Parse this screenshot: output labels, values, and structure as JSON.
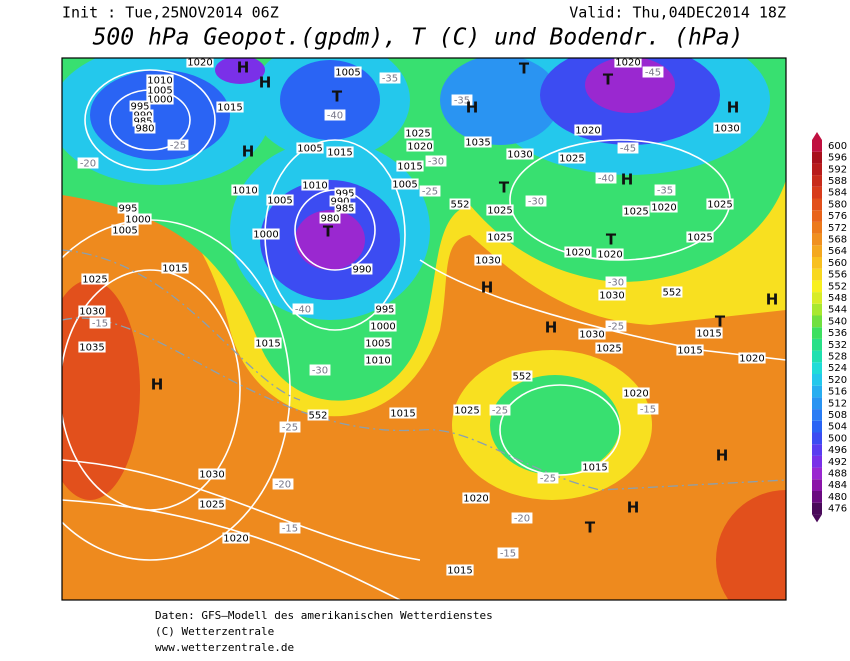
{
  "header": {
    "init": "Init : Tue,25NOV2014 06Z",
    "valid": "Valid: Thu,04DEC2014 18Z",
    "title": "500 hPa Geopot.(gpdm), T (C) und Bodendr. (hPa)"
  },
  "colorbar": {
    "levels": [
      476,
      480,
      484,
      488,
      492,
      496,
      500,
      504,
      508,
      512,
      516,
      520,
      524,
      528,
      532,
      536,
      540,
      544,
      548,
      552,
      556,
      560,
      564,
      568,
      572,
      576,
      580,
      584,
      588,
      592,
      596,
      600
    ],
    "colors": [
      "#4a0a5a",
      "#6a0a80",
      "#8a14a8",
      "#9a28d0",
      "#7a30e8",
      "#5a3cf0",
      "#3c4cf2",
      "#2a64f4",
      "#2a7cf4",
      "#2a94f2",
      "#28aef0",
      "#24c8ec",
      "#20dcd8",
      "#20e0b0",
      "#28e088",
      "#3ce060",
      "#70e040",
      "#a8e830",
      "#d8ec28",
      "#f8f020",
      "#f8d820",
      "#f8c020",
      "#f4a820",
      "#f09020",
      "#ec7a1c",
      "#e8641c",
      "#e2501c",
      "#d83c1c",
      "#c82c1c",
      "#b81c1c",
      "#a8101c",
      "#c01040"
    ]
  },
  "map_labels": [
    "1020",
    "1010",
    "1005",
    "1000",
    "995",
    "990",
    "985",
    "980",
    "-25",
    "-20",
    "1015",
    "H",
    "H",
    "H",
    "1005",
    "-35",
    "T",
    "-40",
    "1005",
    "1015",
    "1010",
    "1005",
    "995",
    "990",
    "985",
    "980",
    "T",
    "1000",
    "990",
    "995",
    "1000",
    "1005",
    "1010",
    "-40",
    "1015",
    "-30",
    "552",
    "1015",
    "-25",
    "1010",
    "995",
    "1000",
    "1005",
    "1015",
    "1025",
    "1030",
    "-15",
    "1035",
    "H",
    "1030",
    "-20",
    "1025",
    "1020",
    "-15",
    "-35",
    "H",
    "1025",
    "1020",
    "-30",
    "1015",
    "1005",
    "-25",
    "1035",
    "T",
    "1030",
    "T",
    "-30",
    "552",
    "1025",
    "1025",
    "1030",
    "H",
    "1025",
    "1020",
    "T",
    "1020",
    "-45",
    "H",
    "1030",
    "-45",
    "-40",
    "H",
    "-35",
    "1020",
    "1025",
    "1025",
    "T",
    "1020",
    "1020",
    "1025",
    "-30",
    "1030",
    "552",
    "H",
    "1030",
    "-25",
    "1025",
    "T",
    "1015",
    "1015",
    "1020",
    "H",
    "552",
    "1025",
    "-25",
    "1020",
    "-15",
    "H",
    "1015",
    "-25",
    "1020",
    "-20",
    "T",
    "H",
    "-15",
    "1015"
  ],
  "footer": [
    "Daten: GFS–Modell des amerikanischen Wetterdienstes",
    "(C) Wetterzentrale",
    "www.wetterzentrale.de"
  ]
}
